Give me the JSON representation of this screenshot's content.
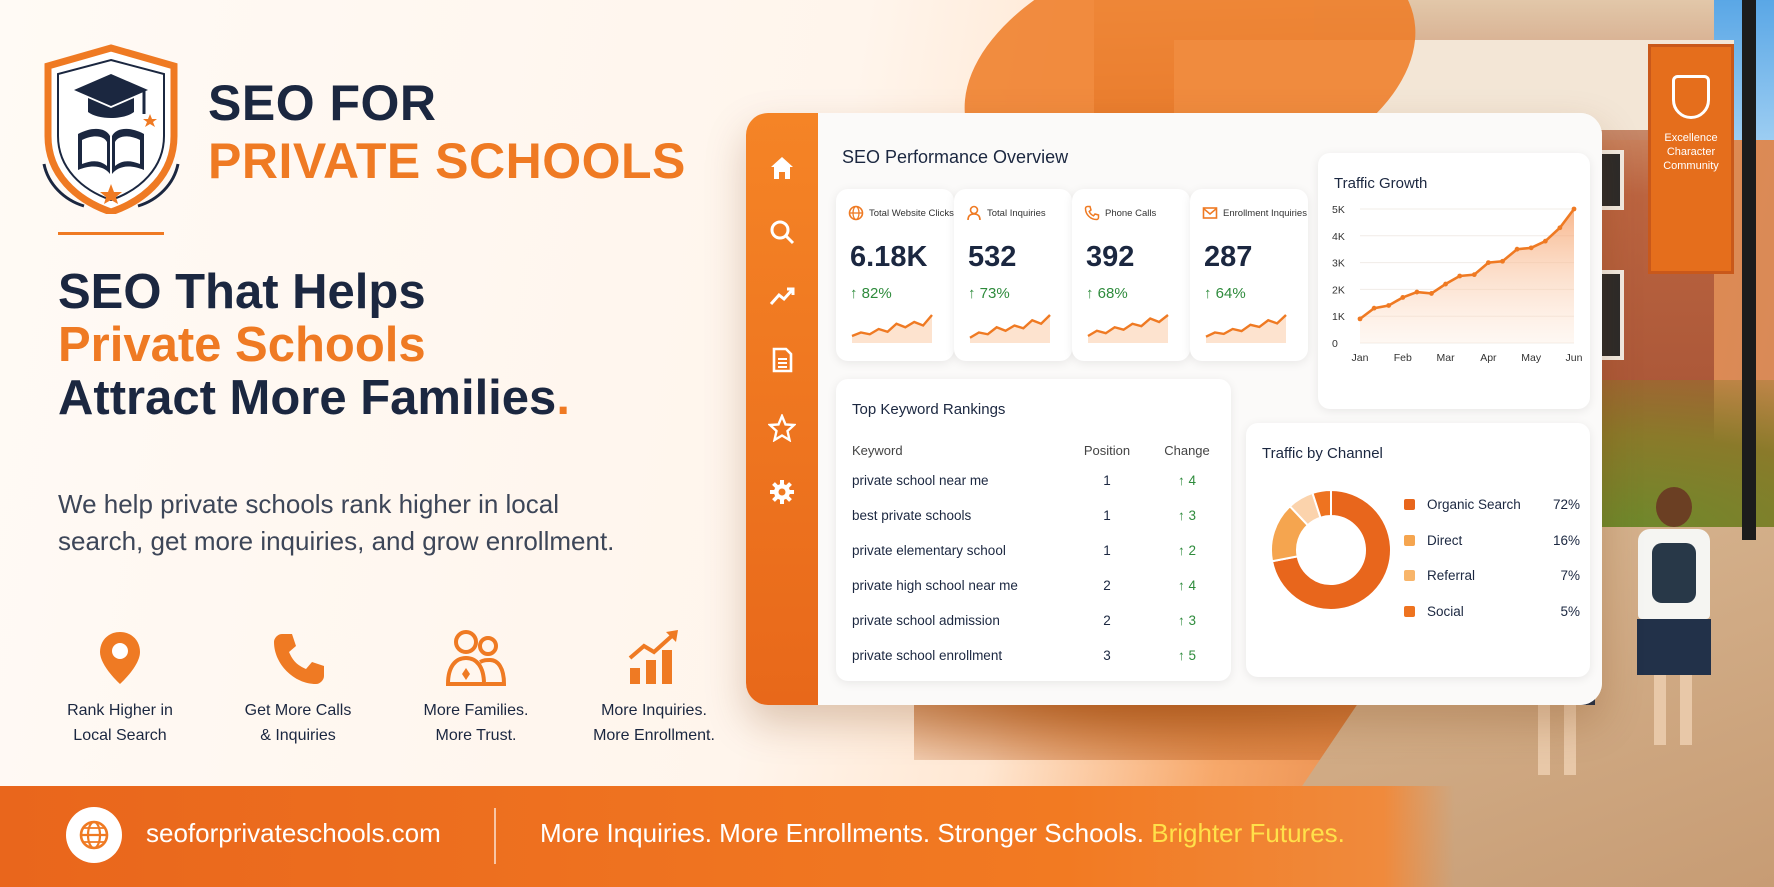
{
  "brand": {
    "title_line1": "SEO FOR",
    "title_line2": "PRIVATE SCHOOLS"
  },
  "headline": {
    "line1": "SEO That Helps",
    "line2": "Private Schools",
    "line3": "Attract More Families",
    "end_mark": "."
  },
  "subtext": "We help private schools rank higher in local search, get more inquiries, and grow enrollment.",
  "features": [
    {
      "icon": "map-pin-icon",
      "line1": "Rank Higher in",
      "line2": "Local Search"
    },
    {
      "icon": "phone-icon",
      "line1": "Get More Calls",
      "line2": "& Inquiries"
    },
    {
      "icon": "family-icon",
      "line1": "More Families.",
      "line2": "More Trust."
    },
    {
      "icon": "growth-chart-icon",
      "line1": "More Inquiries.",
      "line2": "More Enrollment."
    }
  ],
  "dashboard": {
    "title": "SEO Performance Overview",
    "rail_icons": [
      "home-icon",
      "search-icon",
      "trend-icon",
      "document-icon",
      "star-icon",
      "gear-icon"
    ],
    "kpis": [
      {
        "icon": "globe-icon",
        "label": "Total Website Clicks",
        "value": "6.18K",
        "change": "↑ 82%"
      },
      {
        "icon": "user-icon",
        "label": "Total Inquiries",
        "value": "532",
        "change": "↑ 73%"
      },
      {
        "icon": "phone-icon",
        "label": "Phone Calls",
        "value": "392",
        "change": "↑ 68%"
      },
      {
        "icon": "mail-icon",
        "label": "Enrollment Inquiries",
        "value": "287",
        "change": "↑ 64%"
      }
    ],
    "keywords": {
      "title": "Top Keyword Rankings",
      "headers": [
        "Keyword",
        "Position",
        "Change"
      ],
      "rows": [
        {
          "keyword": "private school near me",
          "position": "1",
          "change": "↑ 4"
        },
        {
          "keyword": "best private schools",
          "position": "1",
          "change": "↑ 3"
        },
        {
          "keyword": "private elementary school",
          "position": "1",
          "change": "↑ 2"
        },
        {
          "keyword": "private high school near me",
          "position": "2",
          "change": "↑ 4"
        },
        {
          "keyword": "private school admission",
          "position": "2",
          "change": "↑ 3"
        },
        {
          "keyword": "private school enrollment",
          "position": "3",
          "change": "↑ 5"
        }
      ]
    },
    "traffic_channel": {
      "title": "Traffic by Channel",
      "items": [
        {
          "name": "Organic Search",
          "pct": "72%",
          "color": "#e8661c"
        },
        {
          "name": "Direct",
          "pct": "16%",
          "color": "#f5a54f"
        },
        {
          "name": "Referral",
          "pct": "7%",
          "color": "#f8b56a"
        },
        {
          "name": "Social",
          "pct": "5%",
          "color": "#ee7320"
        }
      ]
    }
  },
  "chart_data": [
    {
      "type": "area",
      "title": "Traffic Growth",
      "categories": [
        "Jan",
        "Feb",
        "Mar",
        "Apr",
        "May",
        "Jun"
      ],
      "x": [
        0,
        0.33,
        0.67,
        1,
        1.33,
        1.67,
        2,
        2.33,
        2.67,
        3,
        3.33,
        3.67,
        4,
        4.33,
        4.67,
        5
      ],
      "values": [
        900,
        1300,
        1400,
        1700,
        1900,
        1850,
        2200,
        2500,
        2550,
        3000,
        3050,
        3500,
        3550,
        3800,
        4300,
        5000
      ],
      "yticks": [
        "0",
        "1K",
        "2K",
        "3K",
        "4K",
        "5K"
      ],
      "ylim": [
        0,
        5000
      ],
      "color": "#ef7a23"
    },
    {
      "type": "pie",
      "title": "Traffic by Channel",
      "categories": [
        "Organic Search",
        "Direct",
        "Referral",
        "Social"
      ],
      "values": [
        72,
        16,
        7,
        5
      ],
      "colors": [
        "#e8661c",
        "#f5a54f",
        "#fbd3ac",
        "#ee7320"
      ]
    }
  ],
  "sparklines": [
    [
      2,
      3,
      2.5,
      4,
      3.2,
      5.5,
      4.5,
      6,
      5,
      8
    ],
    [
      1.5,
      3,
      2.5,
      4.5,
      3.5,
      5,
      4.2,
      6.5,
      5.5,
      8
    ],
    [
      2,
      3.5,
      2.8,
      4.5,
      3.8,
      5.5,
      4.8,
      7,
      6,
      8
    ],
    [
      1.8,
      3,
      2.6,
      4,
      3.4,
      5.2,
      4.6,
      6.5,
      5.6,
      8
    ]
  ],
  "banner_text": "Excellence Character Community",
  "footer": {
    "url": "seoforprivateschools.com",
    "tagline": "More Inquiries. More Enrollments. Stronger Schools.",
    "tagline_highlight": "Brighter Futures."
  },
  "colors": {
    "accent": "#ef7a23",
    "navy": "#1b2740",
    "positive": "#2e8b3c"
  }
}
